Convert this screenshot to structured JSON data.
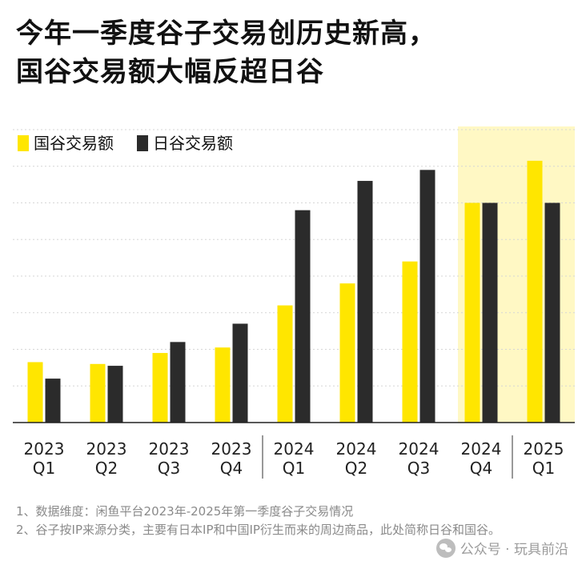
{
  "title": {
    "line1": "今年一季度谷子交易创历史新高，",
    "line2": "国谷交易额大幅反超日谷"
  },
  "chart_data": {
    "type": "bar",
    "categories": [
      [
        "2023",
        "Q1"
      ],
      [
        "2023",
        "Q2"
      ],
      [
        "2023",
        "Q3"
      ],
      [
        "2023",
        "Q4"
      ],
      [
        "2024",
        "Q1"
      ],
      [
        "2024",
        "Q2"
      ],
      [
        "2024",
        "Q3"
      ],
      [
        "2024",
        "Q4"
      ],
      [
        "2025",
        "Q1"
      ]
    ],
    "series": [
      {
        "name": "国谷交易额",
        "color": "#FFE600",
        "values": [
          16.5,
          16,
          19,
          20.5,
          32,
          38,
          44,
          60,
          71.5
        ]
      },
      {
        "name": "日谷交易额",
        "color": "#2B2B2B",
        "values": [
          12,
          15.5,
          22,
          27,
          58,
          66,
          69,
          60,
          60
        ]
      }
    ],
    "ylim": [
      0,
      80
    ],
    "grid": true,
    "legend": "top-left",
    "highlight_categories": [
      7,
      8
    ],
    "highlight_color": "#FFF8C4",
    "separators_after": [
      3,
      7
    ]
  },
  "notes": [
    "1、数据维度：闲鱼平台2023年-2025年第一季度谷子交易情况",
    "2、谷子按IP来源分类，主要有日本IP和中国IP衍生而来的周边商品，此处简称日谷和国谷。"
  ],
  "watermark": {
    "text": "公众号 · 玩具前沿",
    "icon": "wechat-icon"
  }
}
